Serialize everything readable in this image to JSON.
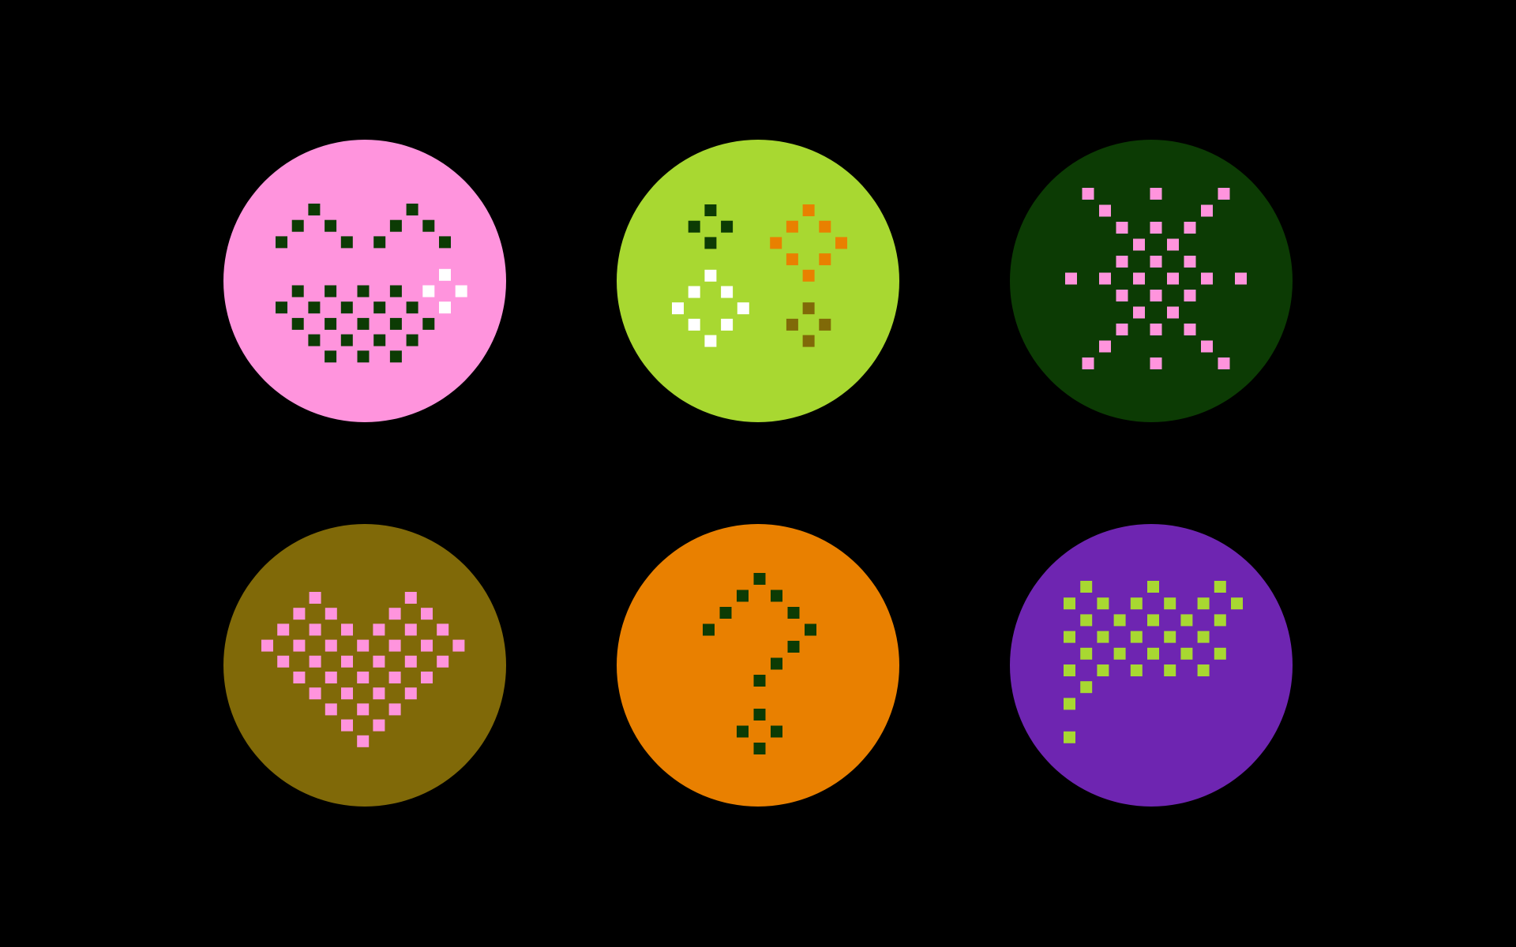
{
  "background": "#000000",
  "badges": [
    {
      "id": "smile",
      "icon": "pixel-smile-with-sparkle-icon",
      "fill": "#ff94dd",
      "pixels": [
        {
          "color": "#0c3b04",
          "cells": [
            [
              2,
              0
            ],
            [
              8,
              0
            ],
            [
              1,
              1
            ],
            [
              3,
              1
            ],
            [
              7,
              1
            ],
            [
              9,
              1
            ],
            [
              0,
              2
            ],
            [
              4,
              2
            ],
            [
              6,
              2
            ],
            [
              10,
              2
            ],
            [
              1,
              5
            ],
            [
              3,
              5
            ],
            [
              5,
              5
            ],
            [
              7,
              5
            ],
            [
              0,
              6
            ],
            [
              2,
              6
            ],
            [
              4,
              6
            ],
            [
              6,
              6
            ],
            [
              8,
              6
            ],
            [
              1,
              7
            ],
            [
              3,
              7
            ],
            [
              5,
              7
            ],
            [
              7,
              7
            ],
            [
              9,
              7
            ],
            [
              2,
              8
            ],
            [
              4,
              8
            ],
            [
              6,
              8
            ],
            [
              8,
              8
            ],
            [
              3,
              9
            ],
            [
              5,
              9
            ],
            [
              7,
              9
            ]
          ]
        },
        {
          "color": "#ffffff",
          "cells": [
            [
              10,
              4
            ],
            [
              9,
              5
            ],
            [
              11,
              5
            ],
            [
              10,
              6
            ]
          ]
        }
      ]
    },
    {
      "id": "diamonds",
      "icon": "pixel-diamond-cluster-icon",
      "fill": "#a8d831",
      "pixels": [
        {
          "color": "#0c3b04",
          "cells": [
            [
              2,
              0
            ],
            [
              1,
              1
            ],
            [
              3,
              1
            ],
            [
              2,
              2
            ]
          ]
        },
        {
          "color": "#e98000",
          "cells": [
            [
              8,
              0
            ],
            [
              7,
              1
            ],
            [
              9,
              1
            ],
            [
              6,
              2
            ],
            [
              10,
              2
            ],
            [
              7,
              3
            ],
            [
              9,
              3
            ],
            [
              8,
              4
            ]
          ]
        },
        {
          "color": "#ffffff",
          "cells": [
            [
              2,
              4
            ],
            [
              1,
              5
            ],
            [
              3,
              5
            ],
            [
              0,
              6
            ],
            [
              4,
              6
            ],
            [
              1,
              7
            ],
            [
              3,
              7
            ],
            [
              2,
              8
            ]
          ]
        },
        {
          "color": "#806908",
          "cells": [
            [
              8,
              6
            ],
            [
              7,
              7
            ],
            [
              9,
              7
            ],
            [
              8,
              8
            ]
          ]
        }
      ]
    },
    {
      "id": "sparkle",
      "icon": "pixel-sparkle-star-icon",
      "fill": "#0c3b04",
      "pixels": [
        {
          "color": "#ff94dd",
          "cells": [
            [
              1,
              0
            ],
            [
              5,
              0
            ],
            [
              9,
              0
            ],
            [
              2,
              1
            ],
            [
              8,
              1
            ],
            [
              3,
              2
            ],
            [
              5,
              2
            ],
            [
              7,
              2
            ],
            [
              4,
              3
            ],
            [
              6,
              3
            ],
            [
              3,
              4
            ],
            [
              5,
              4
            ],
            [
              7,
              4
            ],
            [
              0,
              5
            ],
            [
              2,
              5
            ],
            [
              4,
              5
            ],
            [
              6,
              5
            ],
            [
              8,
              5
            ],
            [
              10,
              5
            ],
            [
              3,
              6
            ],
            [
              5,
              6
            ],
            [
              7,
              6
            ],
            [
              4,
              7
            ],
            [
              6,
              7
            ],
            [
              3,
              8
            ],
            [
              5,
              8
            ],
            [
              7,
              8
            ],
            [
              2,
              9
            ],
            [
              8,
              9
            ],
            [
              1,
              10
            ],
            [
              5,
              10
            ],
            [
              9,
              10
            ]
          ]
        }
      ]
    },
    {
      "id": "heart",
      "icon": "pixel-heart-icon",
      "fill": "#806908",
      "pixels": [
        {
          "color": "#ff94dd",
          "cells": [
            [
              3,
              0
            ],
            [
              9,
              0
            ],
            [
              2,
              1
            ],
            [
              4,
              1
            ],
            [
              8,
              1
            ],
            [
              10,
              1
            ],
            [
              1,
              2
            ],
            [
              3,
              2
            ],
            [
              5,
              2
            ],
            [
              7,
              2
            ],
            [
              9,
              2
            ],
            [
              11,
              2
            ],
            [
              0,
              3
            ],
            [
              2,
              3
            ],
            [
              4,
              3
            ],
            [
              6,
              3
            ],
            [
              8,
              3
            ],
            [
              10,
              3
            ],
            [
              12,
              3
            ],
            [
              1,
              4
            ],
            [
              3,
              4
            ],
            [
              5,
              4
            ],
            [
              7,
              4
            ],
            [
              9,
              4
            ],
            [
              11,
              4
            ],
            [
              2,
              5
            ],
            [
              4,
              5
            ],
            [
              6,
              5
            ],
            [
              8,
              5
            ],
            [
              10,
              5
            ],
            [
              3,
              6
            ],
            [
              5,
              6
            ],
            [
              7,
              6
            ],
            [
              9,
              6
            ],
            [
              4,
              7
            ],
            [
              6,
              7
            ],
            [
              8,
              7
            ],
            [
              5,
              8
            ],
            [
              7,
              8
            ],
            [
              6,
              9
            ]
          ]
        }
      ]
    },
    {
      "id": "question",
      "icon": "pixel-question-mark-icon",
      "fill": "#e98000",
      "pixels": [
        {
          "color": "#0c3b04",
          "cells": [
            [
              3,
              0
            ],
            [
              2,
              1
            ],
            [
              4,
              1
            ],
            [
              1,
              2
            ],
            [
              5,
              2
            ],
            [
              0,
              3
            ],
            [
              6,
              3
            ],
            [
              5,
              4
            ],
            [
              4,
              5
            ],
            [
              3,
              6
            ],
            [
              3,
              8
            ],
            [
              2,
              9
            ],
            [
              4,
              9
            ],
            [
              3,
              10
            ]
          ]
        }
      ]
    },
    {
      "id": "flag",
      "icon": "pixel-checkered-flag-icon",
      "fill": "#6e25b1",
      "pixels": [
        {
          "color": "#a8d831",
          "cells": [
            [
              1,
              0
            ],
            [
              5,
              0
            ],
            [
              9,
              0
            ],
            [
              0,
              1
            ],
            [
              2,
              1
            ],
            [
              4,
              1
            ],
            [
              6,
              1
            ],
            [
              8,
              1
            ],
            [
              10,
              1
            ],
            [
              1,
              2
            ],
            [
              3,
              2
            ],
            [
              5,
              2
            ],
            [
              7,
              2
            ],
            [
              9,
              2
            ],
            [
              0,
              3
            ],
            [
              2,
              3
            ],
            [
              4,
              3
            ],
            [
              6,
              3
            ],
            [
              8,
              3
            ],
            [
              1,
              4
            ],
            [
              3,
              4
            ],
            [
              5,
              4
            ],
            [
              7,
              4
            ],
            [
              9,
              4
            ],
            [
              0,
              5
            ],
            [
              2,
              5
            ],
            [
              4,
              5
            ],
            [
              6,
              5
            ],
            [
              8,
              5
            ],
            [
              1,
              6
            ],
            [
              0,
              7
            ],
            [
              0,
              9
            ]
          ]
        }
      ]
    }
  ]
}
